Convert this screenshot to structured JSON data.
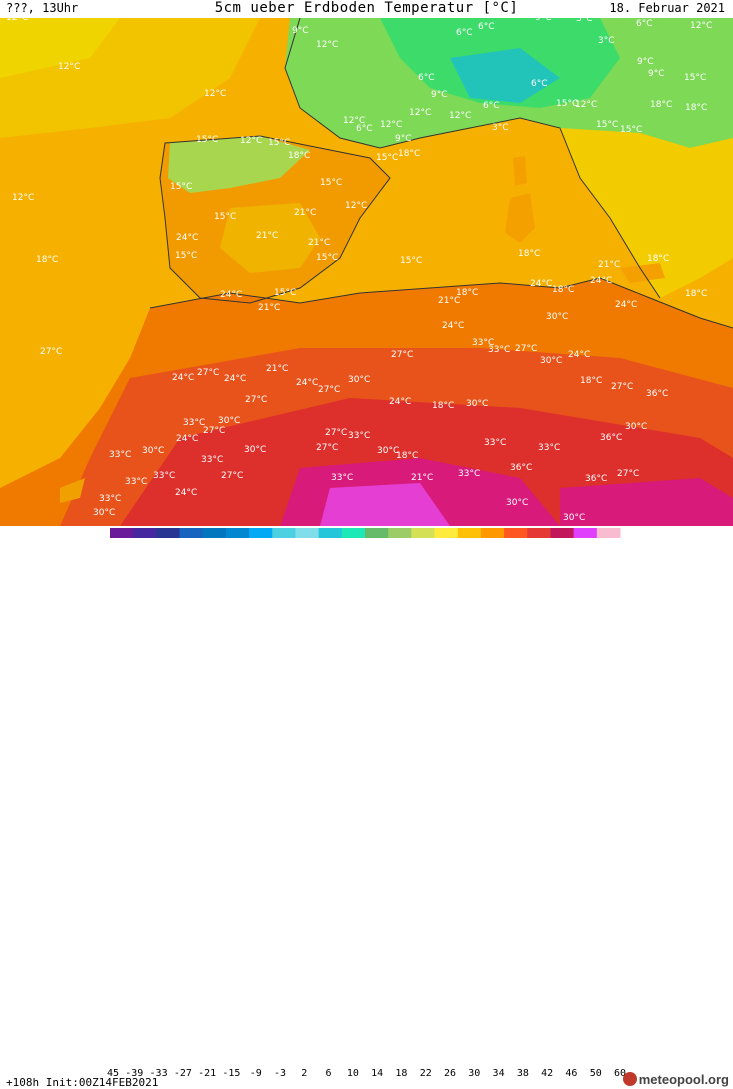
{
  "header": {
    "left": "???, 13Uhr",
    "title": "5cm ueber Erdboden Temperatur [°C]",
    "date": "18. Februar 2021"
  },
  "footer": {
    "run_info": "+108h Init:00Z14FEB2021",
    "brand": "meteopool.org"
  },
  "legend": {
    "ticks": [
      "-45",
      "-39",
      "-33",
      "-27",
      "-21",
      "-15",
      "-9",
      "-3",
      "2",
      "6",
      "10",
      "14",
      "18",
      "22",
      "26",
      "30",
      "34",
      "38",
      "42",
      "46",
      "50",
      "60"
    ],
    "colors": [
      "#6a1b9a",
      "#4527a0",
      "#283593",
      "#1565c0",
      "#0277bd",
      "#0288d1",
      "#03a9f4",
      "#4dd0e1",
      "#80deea",
      "#26c6da",
      "#1de9b6",
      "#66bb6a",
      "#9ccc65",
      "#d4e157",
      "#ffeb3b",
      "#ffc107",
      "#ff9800",
      "#ff5722",
      "#e53935",
      "#c2185b",
      "#e040fb",
      "#f8bbd0"
    ]
  },
  "map_labels": [
    "12°C",
    "9°C",
    "12°C",
    "12°C",
    "6°C",
    "6°C",
    "9°C",
    "3°C",
    "6°C",
    "12°C",
    "12°C",
    "12°C",
    "6°C",
    "6°C",
    "3°C",
    "9°C",
    "9°C",
    "15°C",
    "12°C",
    "9°C",
    "12°C",
    "9°C",
    "12°C",
    "6°C",
    "3°C",
    "6°C",
    "15°C",
    "12°C",
    "15°C",
    "18°C",
    "18°C",
    "12°C",
    "15°C",
    "15°C",
    "12°C",
    "15°C",
    "18°C",
    "15°C",
    "12°C",
    "15°C",
    "18°C",
    "15°C",
    "24°C",
    "15°C",
    "15°C",
    "21°C",
    "21°C",
    "21°C",
    "15°C",
    "15°C",
    "21°C",
    "18°C",
    "18°C",
    "24°C",
    "21°C",
    "18°C",
    "15°C",
    "18°C",
    "24°C",
    "18°C",
    "24°C",
    "24°C",
    "21°C",
    "18°C",
    "30°C",
    "27°C",
    "24°C",
    "27°C",
    "24°C",
    "21°C",
    "27°C",
    "24°C",
    "27°C",
    "24°C",
    "30°C",
    "27°C",
    "24°C",
    "33°C",
    "33°C",
    "27°C",
    "24°C",
    "30°C",
    "18°C",
    "27°C",
    "30°C",
    "36°C",
    "30°C",
    "33°C",
    "24°C",
    "27°C",
    "27°C",
    "30°C",
    "27°C",
    "33°C",
    "30°C",
    "18°C",
    "18°C",
    "30°C",
    "33°C",
    "36°C",
    "33°C",
    "36°C",
    "33°C",
    "30°C",
    "33°C",
    "33°C",
    "21°C",
    "33°C",
    "30°C",
    "33°C",
    "33°C",
    "24°C",
    "27°C",
    "33°C",
    "30°C",
    "30°C",
    "36°C",
    "27°C"
  ]
}
